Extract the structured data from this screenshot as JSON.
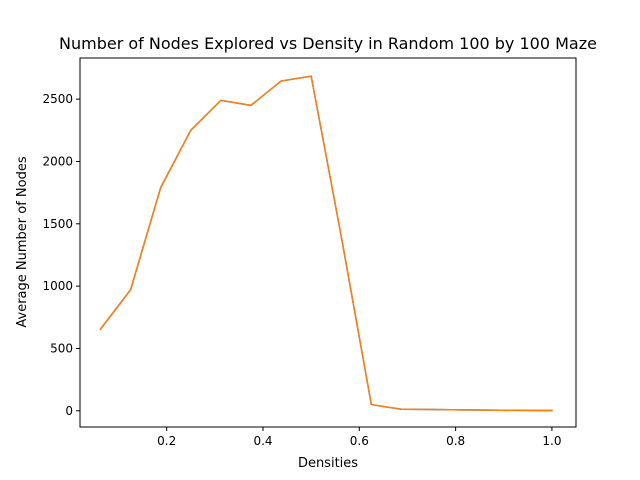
{
  "chart_data": {
    "type": "line",
    "title": "Number of Nodes Explored vs Density in Random 100 by 100 Maze",
    "xlabel": "Densities",
    "ylabel": "Average Number of Nodes",
    "xlim": [
      0.02,
      1.05
    ],
    "ylim": [
      -130,
      2830
    ],
    "xticks": [
      0.2,
      0.4,
      0.6,
      0.8,
      1.0
    ],
    "xtick_labels": [
      "0.2",
      "0.4",
      "0.6",
      "0.8",
      "1.0"
    ],
    "yticks": [
      0,
      500,
      1000,
      1500,
      2000,
      2500
    ],
    "ytick_labels": [
      "0",
      "500",
      "1000",
      "1500",
      "2000",
      "2500"
    ],
    "grid": false,
    "series": [
      {
        "color": "#1f77b4",
        "x": [
          0.0625,
          0.125,
          0.1875,
          0.25,
          0.3125,
          0.375,
          0.4375,
          0.5,
          0.5625,
          0.625,
          0.6875,
          0.75,
          0.8125,
          0.875,
          0.9375,
          1.0
        ],
        "y": [
          655,
          970,
          1790,
          2250,
          2490,
          2450,
          2645,
          2685,
          1400,
          50,
          12,
          10,
          7,
          5,
          3,
          2
        ]
      },
      {
        "color": "#ff7f0e",
        "x": [
          0.0625,
          0.125,
          0.1875,
          0.25,
          0.3125,
          0.375,
          0.4375,
          0.5,
          0.5625,
          0.625,
          0.6875,
          0.75,
          0.8125,
          0.875,
          0.9375,
          1.0
        ],
        "y": [
          655,
          970,
          1790,
          2250,
          2490,
          2450,
          2645,
          2685,
          1400,
          50,
          12,
          10,
          7,
          5,
          3,
          2
        ]
      }
    ]
  }
}
